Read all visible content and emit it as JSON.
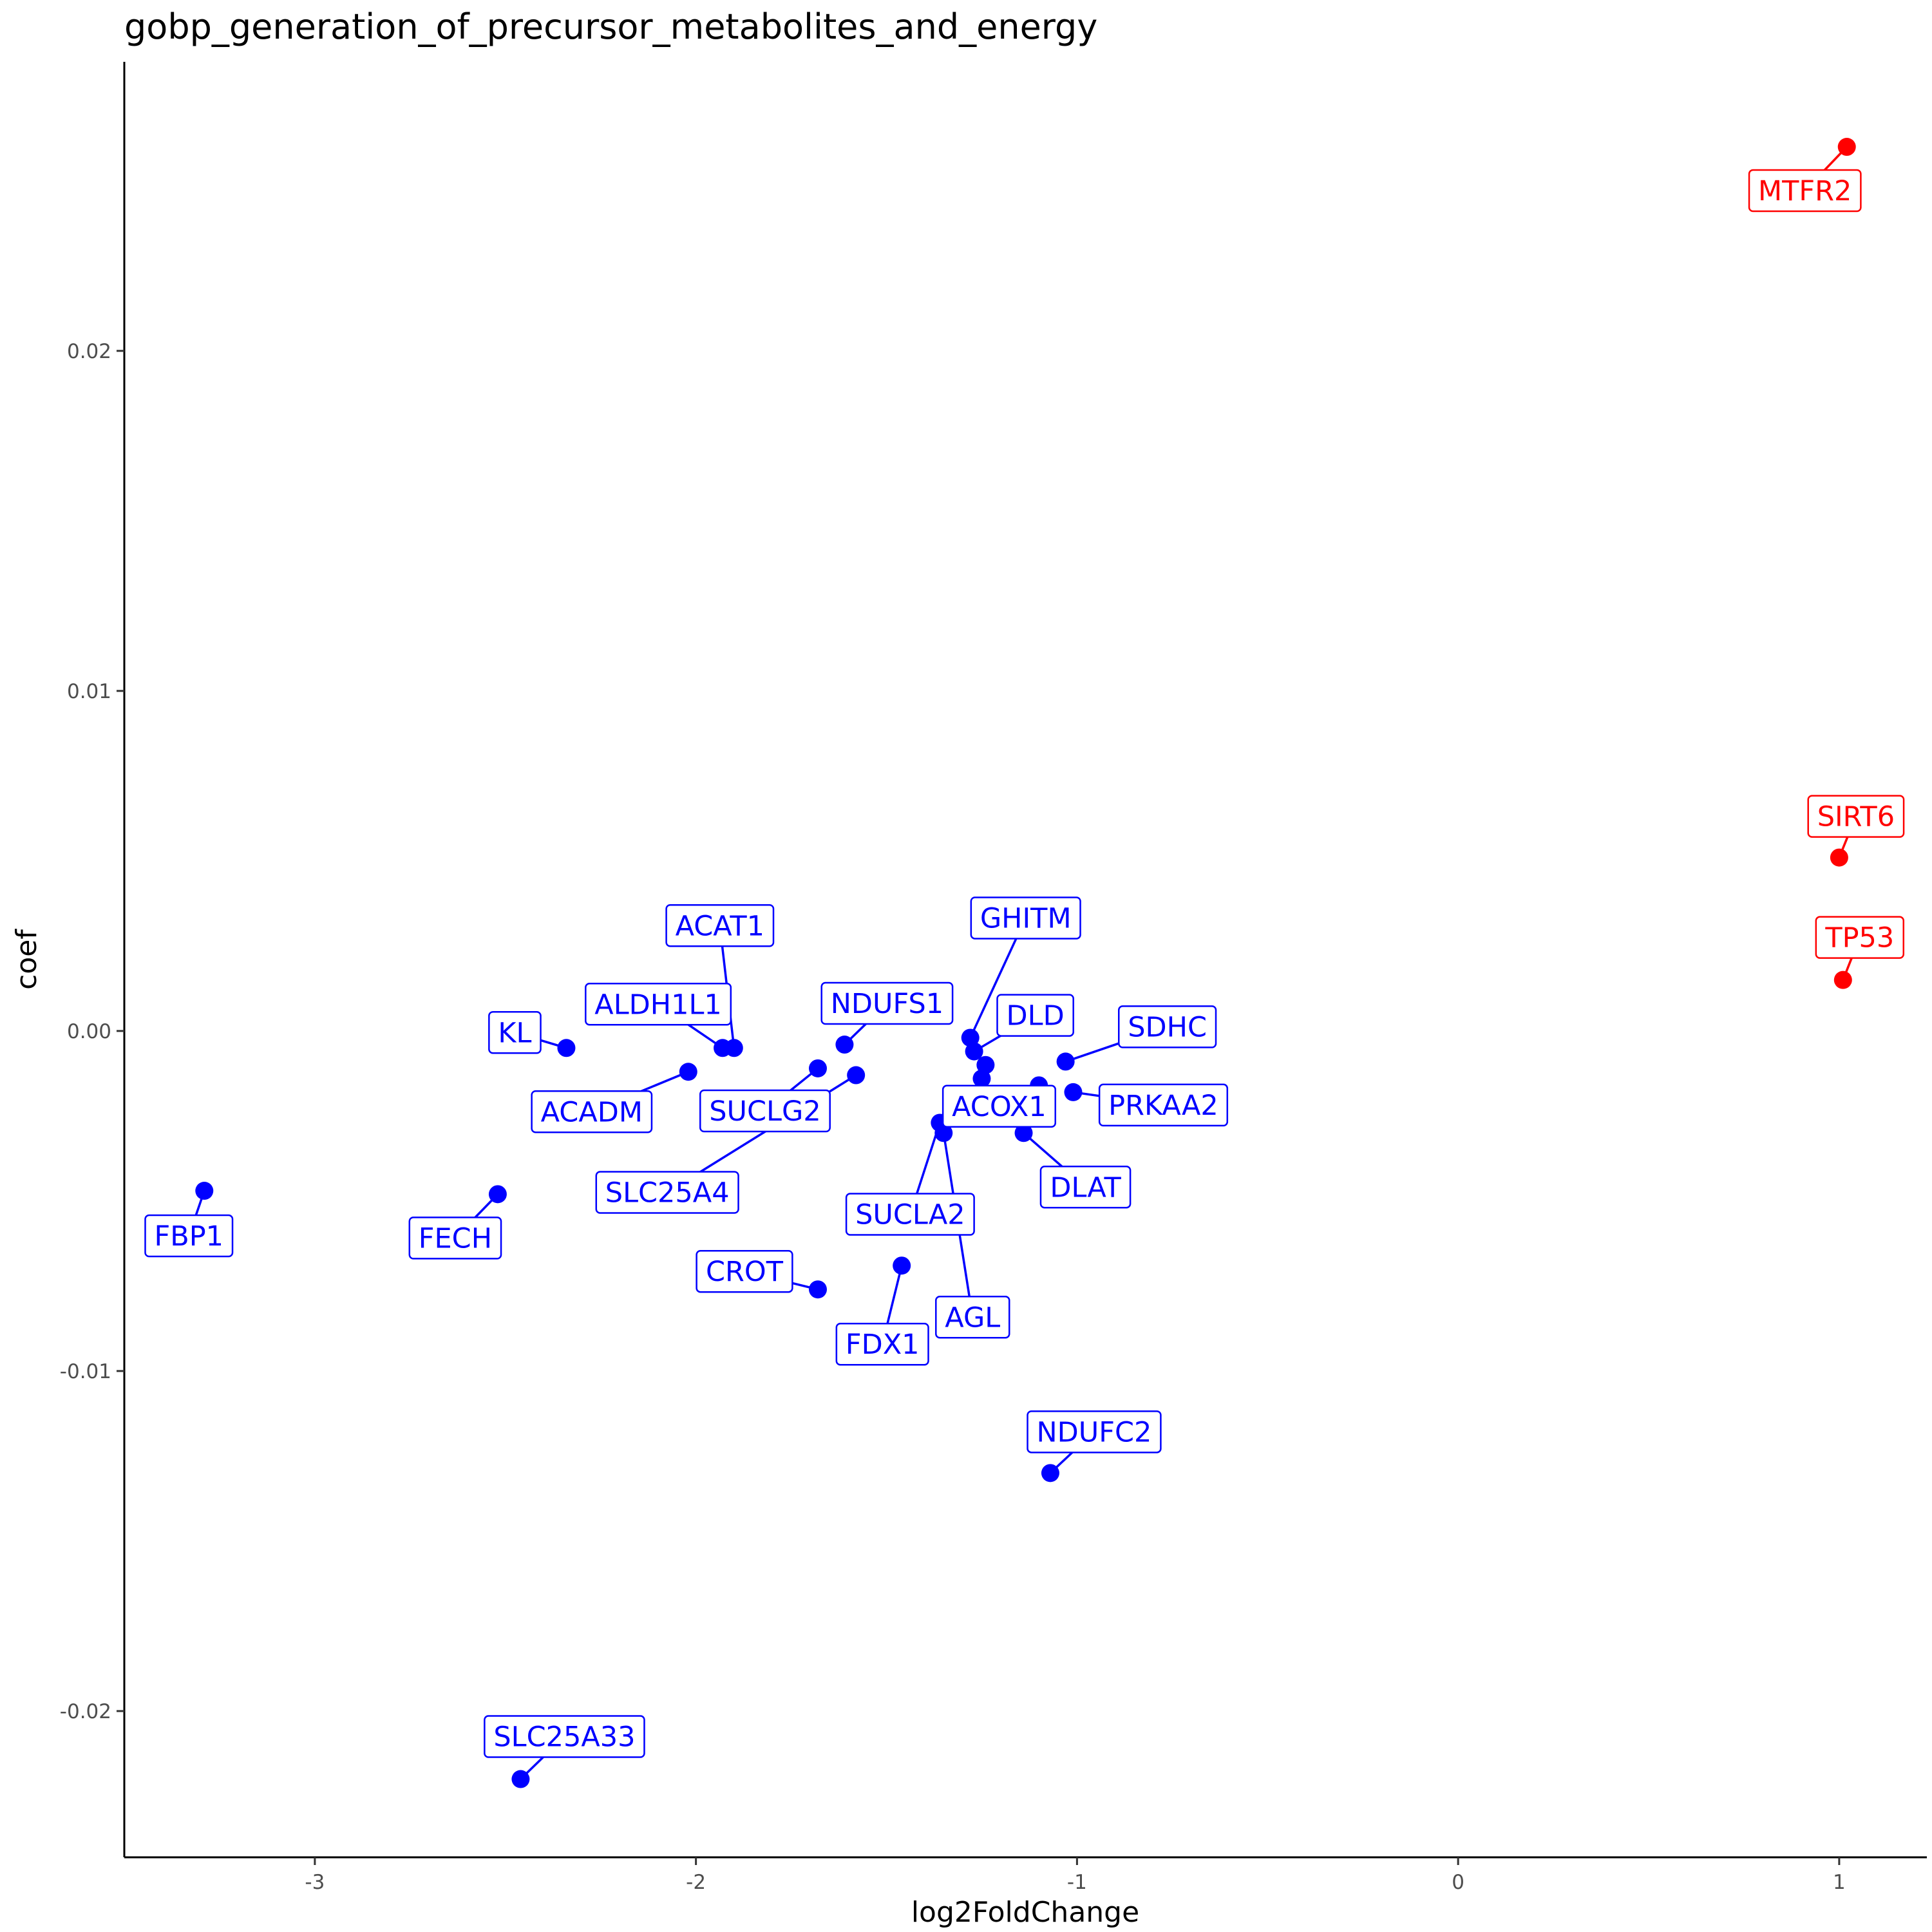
{
  "chart_data": {
    "type": "scatter",
    "title": "gobp_generation_of_precursor_metabolites_and_energy",
    "xlabel": "log2FoldChange",
    "ylabel": "coef",
    "xlim": [
      -3.5,
      1.23
    ],
    "ylim": [
      -0.0243,
      0.0285
    ],
    "x_ticks": [
      -3,
      -2,
      -1,
      0,
      1
    ],
    "x_tick_labels": [
      "-3",
      "-2",
      "-1",
      "0",
      "1"
    ],
    "y_ticks": [
      -0.02,
      -0.01,
      0.0,
      0.01,
      0.02
    ],
    "y_tick_labels": [
      "-0.02",
      "-0.01",
      "0.00",
      "0.01",
      "0.02"
    ],
    "grid": false,
    "legend": "none",
    "colors": {
      "down": "#0000ff",
      "up": "#ff0000"
    },
    "points": [
      {
        "label": "MTFR2",
        "x": 1.02,
        "y": 0.026,
        "group": "up"
      },
      {
        "label": "SIRT6",
        "x": 1.0,
        "y": 0.0051,
        "group": "up"
      },
      {
        "label": "TP53",
        "x": 1.01,
        "y": 0.0015,
        "group": "up"
      },
      {
        "label": "FBP1",
        "x": -3.29,
        "y": -0.0047,
        "group": "down"
      },
      {
        "label": "FECH",
        "x": -2.52,
        "y": -0.0048,
        "group": "down"
      },
      {
        "label": "KL",
        "x": -2.34,
        "y": -0.0005,
        "group": "down"
      },
      {
        "label": "ACADM",
        "x": -2.02,
        "y": -0.0012,
        "group": "down"
      },
      {
        "label": "ALDH1L1",
        "x": -1.93,
        "y": -0.0005,
        "group": "down"
      },
      {
        "label": "ACAT1",
        "x": -1.9,
        "y": -0.0005,
        "group": "down"
      },
      {
        "label": "SUCLG2",
        "x": -1.68,
        "y": -0.0011,
        "group": "down"
      },
      {
        "label": "SLC25A4",
        "x": -1.58,
        "y": -0.0013,
        "group": "down"
      },
      {
        "label": "NDUFS1",
        "x": -1.61,
        "y": -0.0004,
        "group": "down"
      },
      {
        "label": "CROT",
        "x": -1.68,
        "y": -0.0076,
        "group": "down"
      },
      {
        "label": "FDX1",
        "x": -1.46,
        "y": -0.0069,
        "group": "down"
      },
      {
        "label": "GHITM",
        "x": -1.28,
        "y": -0.0002,
        "group": "down"
      },
      {
        "label": "DLD",
        "x": -1.27,
        "y": -0.0006,
        "group": "down"
      },
      {
        "label": "ACOX1",
        "x": -1.25,
        "y": -0.0014,
        "group": "down"
      },
      {
        "label": "SUCLA2",
        "x": -1.36,
        "y": -0.0027,
        "group": "down"
      },
      {
        "label": "AGL",
        "x": -1.35,
        "y": -0.003,
        "group": "down"
      },
      {
        "label": "DLAT",
        "x": -1.14,
        "y": -0.003,
        "group": "down"
      },
      {
        "label": "SDHC",
        "x": -1.03,
        "y": -0.0009,
        "group": "down"
      },
      {
        "label": "PRKAA2",
        "x": -1.01,
        "y": -0.0018,
        "group": "down"
      },
      {
        "label": "NDUFC2",
        "x": -1.07,
        "y": -0.013,
        "group": "down"
      },
      {
        "label": "SLC25A33",
        "x": -2.46,
        "y": -0.022,
        "group": "down"
      }
    ],
    "extra_points": [
      {
        "x": -1.24,
        "y": -0.001,
        "group": "down"
      },
      {
        "x": -1.1,
        "y": -0.0016,
        "group": "down"
      }
    ]
  }
}
